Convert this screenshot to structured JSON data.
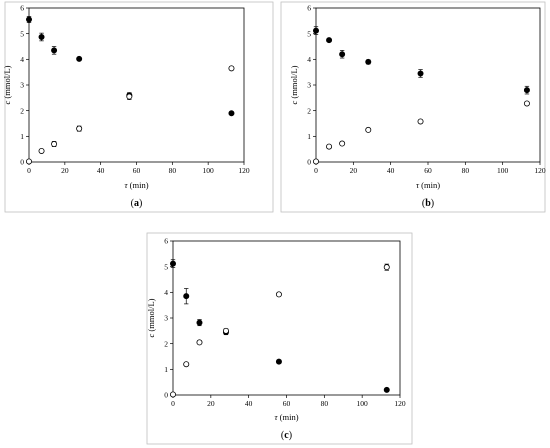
{
  "figure": {
    "caption_labels": [
      "(a)",
      "(b)",
      "(c)"
    ]
  },
  "chart_data": [
    {
      "type": "scatter",
      "panel": "(a)",
      "xlabel_var": "τ",
      "xlabel_unit": " (min)",
      "ylabel_var": "c",
      "ylabel_unit": " (mmol/L)",
      "xlim": [
        0,
        120
      ],
      "ylim": [
        0,
        6
      ],
      "xticks": [
        0,
        20,
        40,
        60,
        80,
        100,
        120
      ],
      "yticks": [
        0,
        1,
        2,
        3,
        4,
        5,
        6
      ],
      "grid": false,
      "series": [
        {
          "marker": "filled-circle",
          "x": [
            0,
            7,
            14,
            28,
            56,
            113
          ],
          "y": [
            5.55,
            4.87,
            4.35,
            4.02,
            2.6,
            1.9
          ],
          "err": [
            0.12,
            0.15,
            0.15,
            0.04,
            0.1,
            0.05
          ]
        },
        {
          "marker": "open-circle",
          "x": [
            0,
            7,
            14,
            28,
            56,
            113
          ],
          "y": [
            0.02,
            0.43,
            0.7,
            1.3,
            2.55,
            3.65
          ],
          "err": [
            0,
            0.03,
            0.1,
            0.1,
            0.12,
            0.05
          ]
        }
      ]
    },
    {
      "type": "scatter",
      "panel": "(b)",
      "xlabel_var": "τ",
      "xlabel_unit": " (min)",
      "ylabel_var": "c",
      "ylabel_unit": " (mmol/L)",
      "xlim": [
        0,
        120
      ],
      "ylim": [
        0,
        6
      ],
      "xticks": [
        0,
        20,
        40,
        60,
        80,
        100,
        120
      ],
      "yticks": [
        0,
        1,
        2,
        3,
        4,
        5,
        6
      ],
      "grid": false,
      "series": [
        {
          "marker": "filled-circle",
          "x": [
            0,
            7,
            14,
            28,
            56,
            113
          ],
          "y": [
            5.12,
            4.75,
            4.2,
            3.9,
            3.45,
            2.8
          ],
          "err": [
            0.15,
            0.05,
            0.15,
            0.08,
            0.15,
            0.15
          ]
        },
        {
          "marker": "open-circle",
          "x": [
            0,
            7,
            14,
            28,
            56,
            113
          ],
          "y": [
            0.02,
            0.6,
            0.72,
            1.25,
            1.58,
            2.28
          ],
          "err": [
            0,
            0,
            0,
            0,
            0,
            0
          ]
        }
      ]
    },
    {
      "type": "scatter",
      "panel": "(c)",
      "xlabel_var": "τ",
      "xlabel_unit": " (min)",
      "ylabel_var": "c",
      "ylabel_unit": " (mmol/L)",
      "xlim": [
        0,
        120
      ],
      "ylim": [
        0,
        6
      ],
      "xticks": [
        0,
        20,
        40,
        60,
        80,
        100,
        120
      ],
      "yticks": [
        0,
        1,
        2,
        3,
        4,
        5,
        6
      ],
      "grid": false,
      "series": [
        {
          "marker": "filled-circle",
          "x": [
            0,
            7,
            14,
            28,
            56,
            113
          ],
          "y": [
            5.12,
            3.85,
            2.82,
            2.45,
            1.3,
            0.2
          ],
          "err": [
            0.15,
            0.3,
            0.12,
            0.1,
            0.06,
            0.03
          ]
        },
        {
          "marker": "open-circle",
          "x": [
            0,
            7,
            14,
            28,
            56,
            113
          ],
          "y": [
            0.02,
            1.2,
            2.05,
            2.5,
            3.92,
            4.98
          ],
          "err": [
            0,
            0,
            0,
            0.08,
            0,
            0.12
          ]
        }
      ]
    }
  ]
}
